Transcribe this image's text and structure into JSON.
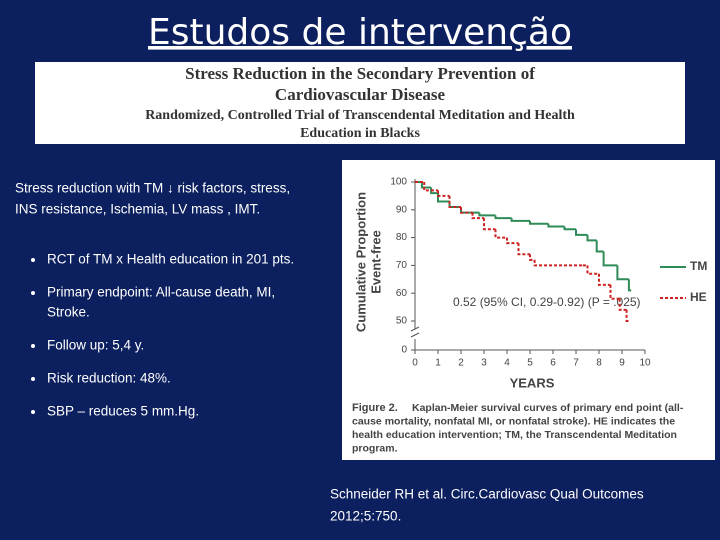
{
  "title": "Estudos de intervenção",
  "article": {
    "title_lines": [
      "Stress Reduction in the Secondary Prevention of",
      "Cardiovascular Disease"
    ],
    "subtitle_lines": [
      "Randomized, Controlled Trial of Transcendental Meditation and Health",
      "Education in Blacks"
    ]
  },
  "summary_lines": [
    "Stress reduction with TM ↓ risk factors, stress,",
    "INS resistance, Ischemia, LV mass , IMT."
  ],
  "bullets": [
    [
      "RCT of TM  x  Health education in 201 pts."
    ],
    [
      "Primary endpoint: All-cause death, MI,",
      "Stroke."
    ],
    [
      "Follow up: 5,4 y."
    ],
    [
      "Risk reduction: 48%."
    ],
    [
      "SBP – reduces 5 mm.Hg."
    ]
  ],
  "chart_data": {
    "type": "line",
    "step": true,
    "y_label_lines": [
      "Cumulative Proportion",
      "Event-free"
    ],
    "x_label": "YEARS",
    "xlim": [
      0,
      10
    ],
    "xticks": [
      0,
      1,
      2,
      3,
      4,
      5,
      6,
      7,
      8,
      9,
      10
    ],
    "ylim": [
      50,
      100
    ],
    "yticks": [
      0,
      50,
      60,
      70,
      80,
      90,
      100
    ],
    "y_axis_break": true,
    "annotation": "0.52 (95% CI, 0.29-0.92) (P = .025)",
    "caption": {
      "label": "Figure 2.",
      "lines": [
        "Kaplan-Meier survival curves of primary end point (all-",
        "cause mortality, nonfatal MI, or nonfatal stroke). HE indicates the",
        "health education intervention; TM, the Transcendental Meditation",
        "program."
      ]
    },
    "series": [
      {
        "name": "TM",
        "color": "#2e8b57",
        "dashed": false,
        "x": [
          0,
          0.3,
          0.7,
          1.0,
          1.5,
          2.0,
          2.8,
          3.5,
          4.2,
          5.0,
          5.8,
          6.5,
          7.0,
          7.5,
          7.9,
          8.2,
          8.8,
          9.3,
          9.4
        ],
        "values": [
          100,
          98,
          96,
          93,
          91,
          89,
          88,
          87,
          86,
          85,
          84,
          83,
          81,
          79,
          75,
          70,
          65,
          61,
          61
        ]
      },
      {
        "name": "HE",
        "color": "#cc2222",
        "dashed": true,
        "x": [
          0,
          0.4,
          1.0,
          1.5,
          2.0,
          2.5,
          3.0,
          3.5,
          4.0,
          4.5,
          5.0,
          5.2,
          7.3,
          7.5,
          8.0,
          8.5,
          8.9,
          9.2,
          9.3
        ],
        "values": [
          100,
          97,
          95,
          91,
          89,
          87,
          83,
          80,
          78,
          74,
          72,
          70,
          70,
          67,
          63,
          58,
          54,
          50,
          50
        ]
      }
    ]
  },
  "citation_lines": [
    "Schneider RH et al. Circ.Cardiovasc Qual Outcomes",
    "2012;5:750."
  ]
}
